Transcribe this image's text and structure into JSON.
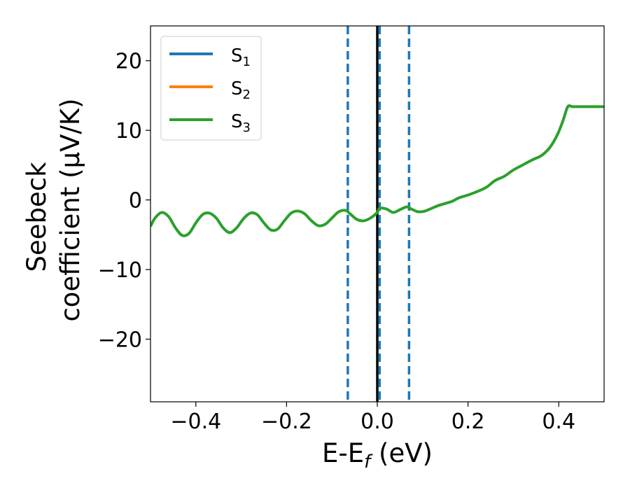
{
  "chart_data": {
    "type": "line",
    "xlabel": "E-E",
    "xlabel_sub": "f",
    "xlabel_unit": " (eV)",
    "ylabel_line1": "Seebeck",
    "ylabel_line2": "coefficient  (μV/K)",
    "xlim": [
      -0.5,
      0.5
    ],
    "ylim": [
      -29,
      25
    ],
    "xticks": [
      -0.4,
      -0.2,
      0.0,
      0.2,
      0.4
    ],
    "xtick_labels": [
      "−0.4",
      "−0.2",
      "0.0",
      "0.2",
      "0.4"
    ],
    "yticks": [
      -20,
      -10,
      0,
      10,
      20
    ],
    "ytick_labels": [
      "−20",
      "−10",
      "0",
      "10",
      "20"
    ],
    "legend_position": "top-left",
    "series": [
      {
        "name": "S",
        "sub": "1",
        "color": "#1f77b4"
      },
      {
        "name": "S",
        "sub": "2",
        "color": "#ff7f0e"
      },
      {
        "name": "S",
        "sub": "3",
        "color": "#2ca02c",
        "x": [
          -0.5,
          -0.49,
          -0.475,
          -0.46,
          -0.445,
          -0.43,
          -0.415,
          -0.4,
          -0.385,
          -0.37,
          -0.355,
          -0.34,
          -0.325,
          -0.31,
          -0.295,
          -0.28,
          -0.265,
          -0.25,
          -0.235,
          -0.22,
          -0.205,
          -0.19,
          -0.175,
          -0.16,
          -0.145,
          -0.13,
          -0.115,
          -0.1,
          -0.085,
          -0.07,
          -0.06,
          -0.045,
          -0.03,
          -0.015,
          0.0,
          0.005,
          0.02,
          0.035,
          0.05,
          0.065,
          0.075,
          0.09,
          0.105,
          0.12,
          0.135,
          0.15,
          0.165,
          0.18,
          0.2,
          0.22,
          0.24,
          0.26,
          0.28,
          0.3,
          0.32,
          0.34,
          0.36,
          0.37,
          0.38,
          0.39,
          0.4,
          0.41,
          0.42,
          0.43,
          0.44,
          0.45,
          0.46,
          0.47,
          0.48,
          0.49,
          0.5
        ],
        "y": [
          -3.8,
          -2.6,
          -1.8,
          -2.4,
          -4.0,
          -5.1,
          -4.8,
          -3.3,
          -2.1,
          -1.9,
          -2.6,
          -4.0,
          -4.7,
          -4.0,
          -2.7,
          -1.9,
          -2.1,
          -3.3,
          -4.3,
          -4.2,
          -3.0,
          -1.9,
          -1.6,
          -2.0,
          -3.0,
          -3.7,
          -3.5,
          -2.6,
          -1.7,
          -1.5,
          -2.0,
          -2.8,
          -3.0,
          -2.6,
          -1.8,
          -1.2,
          -1.3,
          -1.8,
          -1.4,
          -1.0,
          -1.3,
          -1.7,
          -1.6,
          -1.2,
          -0.8,
          -0.5,
          -0.2,
          0.3,
          0.7,
          1.2,
          1.8,
          2.8,
          3.4,
          4.3,
          5.0,
          5.7,
          6.3,
          6.8,
          7.5,
          8.5,
          9.8,
          11.5,
          13.4,
          13.4,
          13.4,
          13.4,
          13.4,
          13.4,
          13.4,
          13.4,
          13.4
        ]
      }
    ],
    "vlines": [
      {
        "x": 0.0,
        "style": "solid",
        "color": "#000000"
      },
      {
        "x": -0.065,
        "style": "dashed",
        "color": "#1f77b4"
      },
      {
        "x": 0.005,
        "style": "dashed",
        "color": "#1f77b4"
      },
      {
        "x": 0.07,
        "style": "dashed",
        "color": "#1f77b4"
      }
    ]
  }
}
